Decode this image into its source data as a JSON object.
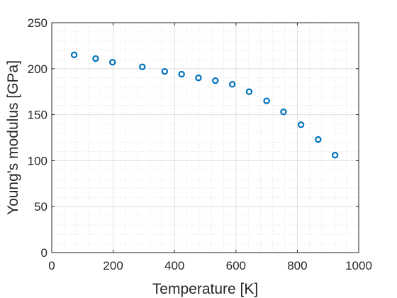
{
  "chart_data": {
    "type": "scatter",
    "title": "",
    "xlabel": "Temperature [K]",
    "ylabel": "Young's modulus [GPa]",
    "xlim": [
      0,
      1000
    ],
    "ylim": [
      0,
      250
    ],
    "xticks": [
      0,
      200,
      400,
      600,
      800,
      1000
    ],
    "yticks": [
      0,
      50,
      100,
      150,
      200,
      250
    ],
    "grid": "on, with minor grid",
    "marker": "open circle",
    "series": [
      {
        "color": "#0072BD",
        "x": [
          73,
          143,
          198,
          295,
          368,
          423,
          478,
          533,
          588,
          643,
          700,
          755,
          812,
          868,
          923
        ],
        "y": [
          215,
          211,
          207,
          202,
          197,
          194,
          190,
          187,
          183,
          175,
          165,
          153,
          139,
          123,
          106
        ]
      }
    ]
  }
}
